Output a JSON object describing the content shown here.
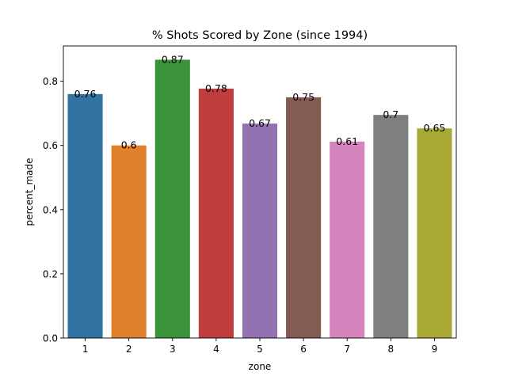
{
  "chart_data": {
    "type": "bar",
    "title": "% Shots Scored by Zone (since 1994)",
    "xlabel": "zone",
    "ylabel": "percent_made",
    "categories": [
      "1",
      "2",
      "3",
      "4",
      "5",
      "6",
      "7",
      "8",
      "9"
    ],
    "values": [
      0.76,
      0.6,
      0.867,
      0.777,
      0.668,
      0.75,
      0.612,
      0.695,
      0.653
    ],
    "data_labels": [
      "0.76",
      "0.6",
      "0.87",
      "0.78",
      "0.67",
      "0.75",
      "0.61",
      "0.7",
      "0.65"
    ],
    "colors": [
      "#3274a1",
      "#e1812c",
      "#3a923a",
      "#c03d3e",
      "#9372b2",
      "#845b53",
      "#d684bd",
      "#7f7f7f",
      "#a9aa35"
    ],
    "ylim": [
      0,
      0.91
    ],
    "yticks": [
      0.0,
      0.2,
      0.4,
      0.6,
      0.8
    ],
    "ytick_labels": [
      "0.0",
      "0.2",
      "0.4",
      "0.6",
      "0.8"
    ],
    "grid": false,
    "legend": "none"
  }
}
